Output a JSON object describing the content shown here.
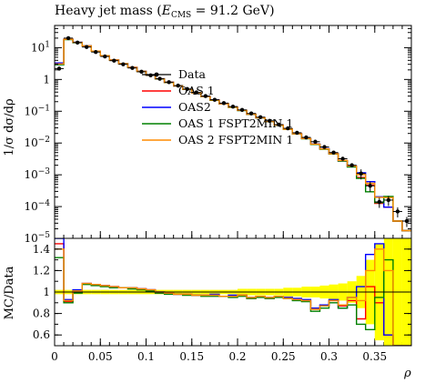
{
  "chart_data": {
    "type": "line",
    "title": "Heavy jet mass (E_CMS = 91.2 GeV)",
    "title_main": "Heavy jet mass (",
    "title_var": "E",
    "title_sub": "CMS",
    "title_rest": " = 91.2 GeV)",
    "xlabel": "ρ",
    "ylabel": "1/σ dσ/dρ",
    "ratio_ylabel": "MC/Data",
    "xlim": [
      0,
      0.39
    ],
    "ylim": [
      1e-05,
      50
    ],
    "yscale": "log",
    "ratio_ylim": [
      0.5,
      1.5
    ],
    "ratio_band_color": "#ffff00",
    "x_ticks": [
      "0",
      "0.05",
      "0.1",
      "0.15",
      "0.2",
      "0.25",
      "0.3",
      "0.35"
    ],
    "y_ticks": [
      "10^1",
      "1",
      "10^-1",
      "10^-2",
      "10^-3",
      "10^-4",
      "10^-5"
    ],
    "ratio_ticks": [
      "1.4",
      "1.2",
      "1",
      "0.8",
      "0.6"
    ],
    "legend_position": "upper-center",
    "bin_edges": [
      0,
      0.01,
      0.02,
      0.03,
      0.04,
      0.05,
      0.06,
      0.07,
      0.08,
      0.09,
      0.1,
      0.11,
      0.12,
      0.13,
      0.14,
      0.15,
      0.16,
      0.17,
      0.18,
      0.19,
      0.2,
      0.21,
      0.22,
      0.23,
      0.24,
      0.25,
      0.26,
      0.27,
      0.28,
      0.29,
      0.3,
      0.31,
      0.32,
      0.33,
      0.34,
      0.35,
      0.36,
      0.37,
      0.38,
      0.39
    ],
    "data": {
      "name": "Data",
      "color": "#000000",
      "values": [
        2.2,
        20,
        14.5,
        10.5,
        7.3,
        5.3,
        3.9,
        3.0,
        2.3,
        1.75,
        1.35,
        1.05,
        0.82,
        0.64,
        0.5,
        0.39,
        0.3,
        0.23,
        0.18,
        0.14,
        0.11,
        0.085,
        0.065,
        0.05,
        0.038,
        0.029,
        0.021,
        0.015,
        0.011,
        0.0075,
        0.005,
        0.0032,
        0.002,
        0.0011,
        0.00045,
        0.00014,
        0.00016,
        7e-05,
        3.5e-05
      ],
      "ratio_band": [
        0.02,
        0.02,
        0.02,
        0.02,
        0.02,
        0.02,
        0.02,
        0.02,
        0.02,
        0.02,
        0.02,
        0.02,
        0.02,
        0.02,
        0.02,
        0.02,
        0.02,
        0.02,
        0.02,
        0.02,
        0.03,
        0.03,
        0.03,
        0.03,
        0.03,
        0.04,
        0.04,
        0.05,
        0.05,
        0.06,
        0.07,
        0.08,
        0.1,
        0.15,
        0.3,
        0.45,
        0.5,
        0.5,
        0.5
      ]
    },
    "series": [
      {
        "name": "OAS 1",
        "color": "#ff0000",
        "ratios": [
          1.45,
          0.91,
          1.0,
          1.08,
          1.07,
          1.06,
          1.05,
          1.04,
          1.04,
          1.03,
          1.02,
          0.99,
          0.99,
          0.98,
          0.98,
          0.97,
          0.97,
          0.97,
          0.96,
          0.96,
          0.97,
          0.94,
          0.96,
          0.94,
          0.96,
          0.95,
          0.93,
          0.92,
          0.84,
          0.87,
          0.92,
          0.87,
          0.92,
          0.75,
          1.05,
          0.9,
          0.6,
          0.5,
          0.5
        ]
      },
      {
        "name": "OAS2",
        "color": "#0000ff",
        "ratios": [
          1.5,
          0.93,
          1.02,
          1.08,
          1.07,
          1.06,
          1.05,
          1.04,
          1.04,
          1.03,
          1.02,
          1.0,
          0.99,
          0.98,
          0.98,
          0.97,
          0.97,
          0.98,
          0.96,
          0.97,
          0.97,
          0.95,
          0.96,
          0.95,
          0.96,
          0.95,
          0.94,
          0.93,
          0.85,
          0.88,
          0.93,
          0.85,
          0.95,
          1.05,
          1.35,
          1.45,
          0.6,
          0.5,
          0.5
        ]
      },
      {
        "name": "OAS 1 FSPT2MIN 1",
        "color": "#008000",
        "ratios": [
          1.32,
          0.9,
          0.99,
          1.07,
          1.06,
          1.05,
          1.04,
          1.04,
          1.03,
          1.02,
          1.01,
          0.99,
          0.98,
          0.98,
          0.97,
          0.97,
          0.96,
          0.96,
          0.96,
          0.95,
          0.96,
          0.94,
          0.95,
          0.94,
          0.95,
          0.94,
          0.92,
          0.91,
          0.82,
          0.85,
          0.9,
          0.85,
          0.88,
          0.7,
          0.65,
          0.95,
          1.3,
          0.5,
          0.5
        ]
      },
      {
        "name": "OAS 2 FSPT2MIN 1",
        "color": "#ff8c00",
        "ratios": [
          1.4,
          0.92,
          1.01,
          1.08,
          1.07,
          1.06,
          1.05,
          1.04,
          1.04,
          1.03,
          1.02,
          1.0,
          0.99,
          0.98,
          0.98,
          0.97,
          0.97,
          0.97,
          0.96,
          0.96,
          0.97,
          0.95,
          0.96,
          0.95,
          0.96,
          0.94,
          0.93,
          0.92,
          0.84,
          0.87,
          0.92,
          0.88,
          0.95,
          0.92,
          1.2,
          1.4,
          1.2,
          0.5,
          0.5
        ]
      }
    ]
  }
}
